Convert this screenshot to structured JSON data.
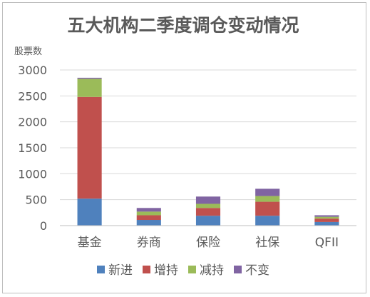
{
  "chart_data": {
    "type": "bar",
    "stacked": true,
    "title": "五大机构二季度调仓变动情况",
    "ylabel": "股票数",
    "xlabel": "",
    "categories": [
      "基金",
      "券商",
      "保险",
      "社保",
      "QFII"
    ],
    "ylim": [
      0,
      3000
    ],
    "yticks": [
      0,
      500,
      1000,
      1500,
      2000,
      2500,
      3000
    ],
    "grid": true,
    "legend_position": "bottom",
    "series": [
      {
        "name": "新进",
        "color": "#4f81bd",
        "values": [
          520,
          110,
          190,
          190,
          70
        ]
      },
      {
        "name": "增持",
        "color": "#c0504d",
        "values": [
          1960,
          90,
          150,
          270,
          65
        ]
      },
      {
        "name": "减持",
        "color": "#9bbb59",
        "values": [
          350,
          70,
          80,
          110,
          35
        ]
      },
      {
        "name": "不变",
        "color": "#8064a2",
        "values": [
          20,
          70,
          140,
          140,
          30
        ]
      }
    ]
  }
}
